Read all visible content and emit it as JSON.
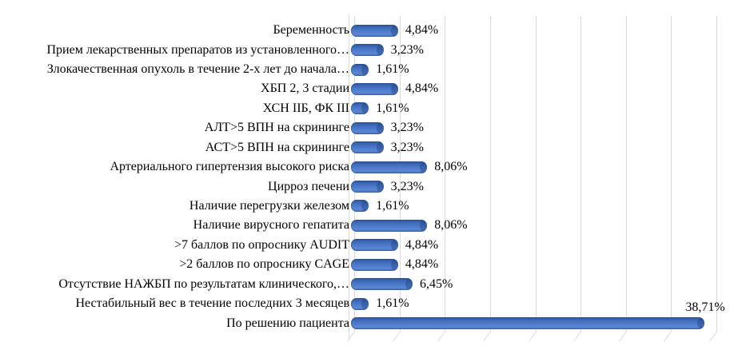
{
  "chart_data": {
    "type": "bar",
    "orientation": "horizontal",
    "title": "",
    "xlabel": "",
    "ylabel": "",
    "categories": [
      "Беременность",
      "Прием лекарственных препаратов из установленного…",
      "Злокачественная опухоль в течение 2-х лет до начала…",
      "ХБП 2, 3 стадии",
      "ХСН IIБ, ФК III",
      "АЛТ>5 ВПН на скрининге",
      "АСТ>5 ВПН на скрининге",
      "Артериального гипертензия высокого риска",
      "Цирроз печени",
      "Наличие перегрузки железом",
      "Наличие вирусного гепатита",
      ">7 баллов по опроснику AUDIT",
      ">2 баллов по опроснику CAGE",
      "Отсутствие НАЖБП по результатам клинического,…",
      "Нестабильный вес в течение последних 3 месяцев",
      "По решению пациента"
    ],
    "values": [
      4.84,
      3.23,
      1.61,
      4.84,
      1.61,
      3.23,
      3.23,
      8.06,
      3.23,
      1.61,
      8.06,
      4.84,
      4.84,
      6.45,
      1.61,
      38.71
    ],
    "value_labels": [
      "4,84%",
      "3,23%",
      "1,61%",
      "4,84%",
      "1,61%",
      "3,23%",
      "3,23%",
      "8,06%",
      "3,23%",
      "1,61%",
      "8,06%",
      "4,84%",
      "4,84%",
      "6,45%",
      "1,61%",
      "38,71%"
    ],
    "xlim": [
      0,
      40
    ],
    "gridline_step_pct": 5,
    "grid": true,
    "legend": "none",
    "style": "3d-horizontal-bar",
    "bar_color": "#4472C4",
    "bar_edge_color": "#2C549C",
    "gridline_color": "#D9D9D9",
    "label_color": "#000000",
    "background_color": "#FFFFFF"
  }
}
